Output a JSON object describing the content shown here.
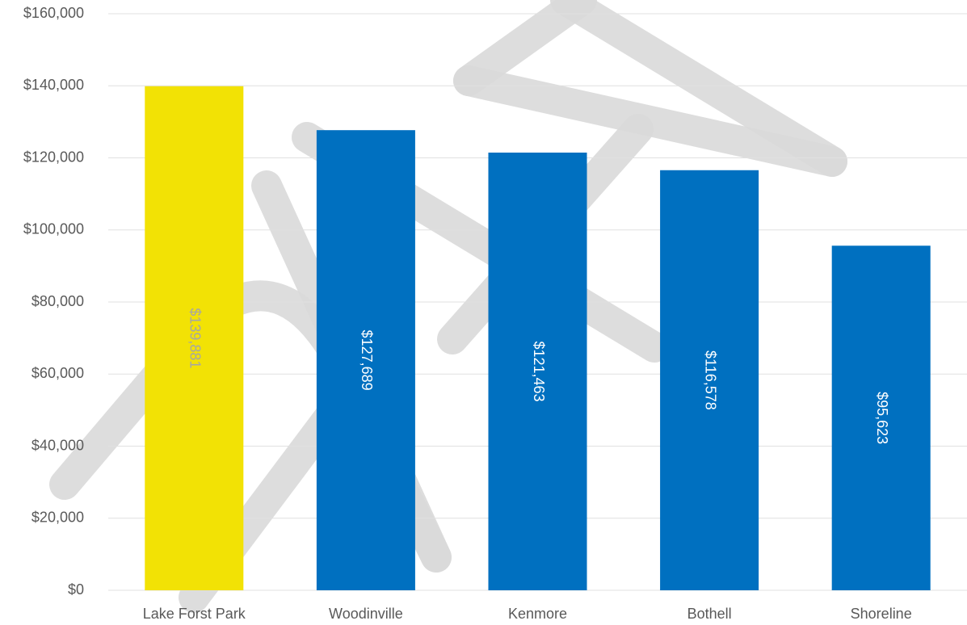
{
  "chart_data": {
    "type": "bar",
    "categories": [
      "Lake Forst Park",
      "Woodinville",
      "Kenmore",
      "Bothell",
      "Shoreline"
    ],
    "values": [
      139881,
      127689,
      121463,
      116578,
      95623
    ],
    "value_labels": [
      "$139,881",
      "$127,689",
      "$121,463",
      "$116,578",
      "$95,623"
    ],
    "colors": [
      "#f2e205",
      "#0070c0",
      "#0070c0",
      "#0070c0",
      "#0070c0"
    ],
    "value_label_colors": [
      "#a6a6a6",
      "#ffffff",
      "#ffffff",
      "#ffffff",
      "#ffffff"
    ],
    "ylim": [
      0,
      160000
    ],
    "yticks": [
      {
        "value": 0,
        "label": "$0"
      },
      {
        "value": 20000,
        "label": "$20,000"
      },
      {
        "value": 40000,
        "label": "$40,000"
      },
      {
        "value": 60000,
        "label": "$60,000"
      },
      {
        "value": 80000,
        "label": "$80,000"
      },
      {
        "value": 100000,
        "label": "$100,000"
      },
      {
        "value": 120000,
        "label": "$120,000"
      },
      {
        "value": 140000,
        "label": "$140,000"
      },
      {
        "value": 160000,
        "label": "$160,000"
      }
    ],
    "grid": true
  }
}
